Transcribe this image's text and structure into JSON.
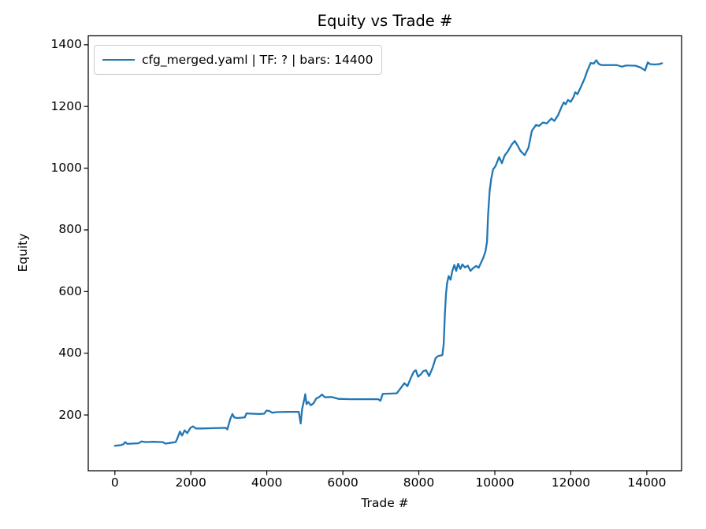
{
  "figure": {
    "title": "Equity vs Trade #",
    "xlabel": "Trade #",
    "ylabel": "Equity",
    "legend_label": "cfg_merged.yaml | TF: ? | bars: 14400",
    "line_color": "#1f77b4",
    "background_color": "#ffffff",
    "spine_color": "#000000"
  },
  "chart_data": {
    "type": "line",
    "title": "Equity vs Trade #",
    "xlabel": "Trade #",
    "ylabel": "Equity",
    "grid": false,
    "legend_position": "upper left",
    "xlim": [
      -700,
      14915
    ],
    "ylim": [
      19,
      1429
    ],
    "xticks": [
      0,
      2000,
      4000,
      6000,
      8000,
      10000,
      12000,
      14000
    ],
    "yticks": [
      200,
      400,
      600,
      800,
      1000,
      1200,
      1400
    ],
    "series": [
      {
        "name": "cfg_merged.yaml | TF: ? | bars: 14400",
        "color": "#1f77b4",
        "points": [
          [
            0,
            100
          ],
          [
            150,
            102
          ],
          [
            230,
            105
          ],
          [
            270,
            112
          ],
          [
            330,
            106
          ],
          [
            450,
            107
          ],
          [
            620,
            108
          ],
          [
            700,
            114
          ],
          [
            820,
            112
          ],
          [
            1000,
            113
          ],
          [
            1260,
            112
          ],
          [
            1330,
            107
          ],
          [
            1500,
            110
          ],
          [
            1600,
            112
          ],
          [
            1640,
            122
          ],
          [
            1700,
            141
          ],
          [
            1712,
            146
          ],
          [
            1770,
            133
          ],
          [
            1836,
            150
          ],
          [
            1906,
            141
          ],
          [
            1990,
            158
          ],
          [
            2060,
            163
          ],
          [
            2130,
            156
          ],
          [
            2300,
            156
          ],
          [
            2600,
            157
          ],
          [
            2920,
            158
          ],
          [
            2960,
            153
          ],
          [
            3000,
            170
          ],
          [
            3040,
            188
          ],
          [
            3095,
            203
          ],
          [
            3140,
            192
          ],
          [
            3220,
            190
          ],
          [
            3330,
            191
          ],
          [
            3420,
            192
          ],
          [
            3465,
            205
          ],
          [
            3600,
            204
          ],
          [
            3790,
            203
          ],
          [
            3930,
            204
          ],
          [
            3990,
            214
          ],
          [
            4060,
            213
          ],
          [
            4140,
            207
          ],
          [
            4260,
            209
          ],
          [
            4550,
            210
          ],
          [
            4840,
            210
          ],
          [
            4890,
            172
          ],
          [
            4930,
            220
          ],
          [
            4990,
            253
          ],
          [
            5010,
            267
          ],
          [
            5045,
            235
          ],
          [
            5090,
            242
          ],
          [
            5160,
            231
          ],
          [
            5230,
            238
          ],
          [
            5300,
            253
          ],
          [
            5380,
            258
          ],
          [
            5450,
            266
          ],
          [
            5530,
            257
          ],
          [
            5700,
            258
          ],
          [
            5890,
            252
          ],
          [
            6200,
            251
          ],
          [
            6600,
            251
          ],
          [
            6930,
            251
          ],
          [
            6990,
            246
          ],
          [
            7050,
            268
          ],
          [
            7250,
            269
          ],
          [
            7420,
            270
          ],
          [
            7530,
            288
          ],
          [
            7620,
            303
          ],
          [
            7700,
            293
          ],
          [
            7790,
            320
          ],
          [
            7870,
            341
          ],
          [
            7920,
            345
          ],
          [
            7980,
            324
          ],
          [
            8050,
            331
          ],
          [
            8120,
            342
          ],
          [
            8190,
            345
          ],
          [
            8270,
            326
          ],
          [
            8360,
            352
          ],
          [
            8440,
            384
          ],
          [
            8510,
            391
          ],
          [
            8620,
            394
          ],
          [
            8655,
            430
          ],
          [
            8685,
            525
          ],
          [
            8715,
            592
          ],
          [
            8745,
            628
          ],
          [
            8785,
            650
          ],
          [
            8835,
            638
          ],
          [
            8885,
            668
          ],
          [
            8935,
            686
          ],
          [
            8985,
            667
          ],
          [
            9035,
            690
          ],
          [
            9095,
            673
          ],
          [
            9145,
            688
          ],
          [
            9215,
            678
          ],
          [
            9290,
            684
          ],
          [
            9360,
            667
          ],
          [
            9430,
            676
          ],
          [
            9510,
            683
          ],
          [
            9575,
            677
          ],
          [
            9635,
            693
          ],
          [
            9700,
            710
          ],
          [
            9755,
            731
          ],
          [
            9795,
            762
          ],
          [
            9825,
            851
          ],
          [
            9865,
            928
          ],
          [
            9905,
            965
          ],
          [
            9955,
            996
          ],
          [
            10015,
            1006
          ],
          [
            10115,
            1036
          ],
          [
            10185,
            1016
          ],
          [
            10260,
            1041
          ],
          [
            10335,
            1053
          ],
          [
            10455,
            1078
          ],
          [
            10525,
            1088
          ],
          [
            10605,
            1072
          ],
          [
            10675,
            1056
          ],
          [
            10785,
            1042
          ],
          [
            10885,
            1066
          ],
          [
            10975,
            1121
          ],
          [
            11085,
            1140
          ],
          [
            11165,
            1137
          ],
          [
            11265,
            1148
          ],
          [
            11365,
            1145
          ],
          [
            11490,
            1161
          ],
          [
            11565,
            1153
          ],
          [
            11665,
            1172
          ],
          [
            11765,
            1201
          ],
          [
            11815,
            1213
          ],
          [
            11865,
            1207
          ],
          [
            11925,
            1221
          ],
          [
            11995,
            1215
          ],
          [
            12065,
            1229
          ],
          [
            12115,
            1246
          ],
          [
            12175,
            1240
          ],
          [
            12265,
            1263
          ],
          [
            12365,
            1291
          ],
          [
            12435,
            1316
          ],
          [
            12525,
            1341
          ],
          [
            12605,
            1339
          ],
          [
            12670,
            1350
          ],
          [
            12735,
            1338
          ],
          [
            12810,
            1334
          ],
          [
            13000,
            1334
          ],
          [
            13210,
            1334
          ],
          [
            13345,
            1329
          ],
          [
            13460,
            1333
          ],
          [
            13705,
            1332
          ],
          [
            13845,
            1326
          ],
          [
            13955,
            1317
          ],
          [
            14025,
            1343
          ],
          [
            14085,
            1337
          ],
          [
            14210,
            1336
          ],
          [
            14320,
            1337
          ],
          [
            14400,
            1340
          ]
        ]
      }
    ]
  }
}
